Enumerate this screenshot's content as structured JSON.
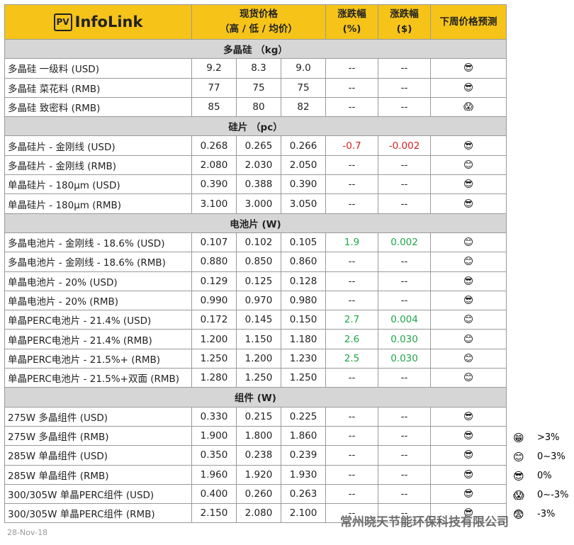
{
  "header": {
    "logo_badge": "PV",
    "logo_text": "InfoLink",
    "columns": [
      [
        "现货价格",
        "（高 / 低 / 均价）"
      ],
      [
        "涨跌幅",
        "(%)"
      ],
      [
        "涨跌幅",
        "($)"
      ],
      [
        "下周价格预测"
      ]
    ]
  },
  "sections": [
    {
      "title": "多晶硅 （kg）",
      "rows": [
        [
          "多晶硅 一级料 (USD)",
          "9.2",
          "8.3",
          "9.0",
          "--",
          "--",
          "😎"
        ],
        [
          "多晶硅 菜花料 (RMB)",
          "77",
          "75",
          "75",
          "--",
          "--",
          "😎"
        ],
        [
          "多晶硅 致密料 (RMB)",
          "85",
          "80",
          "82",
          "--",
          "--",
          "😱"
        ]
      ]
    },
    {
      "title": "硅片 （pc）",
      "rows": [
        [
          "多晶硅片 - 金刚线 (USD)",
          "0.268",
          "0.265",
          "0.266",
          "-0.7",
          "-0.002",
          "😎"
        ],
        [
          "多晶硅片 - 金刚线 (RMB)",
          "2.080",
          "2.030",
          "2.050",
          "--",
          "--",
          "😊"
        ],
        [
          "单晶硅片 - 180μm (USD)",
          "0.390",
          "0.388",
          "0.390",
          "--",
          "--",
          "😎"
        ],
        [
          "单晶硅片 - 180μm (RMB)",
          "3.100",
          "3.000",
          "3.050",
          "--",
          "--",
          "😎"
        ]
      ]
    },
    {
      "title": "电池片 (W)",
      "rows": [
        [
          "多晶电池片 - 金刚线 - 18.6% (USD)",
          "0.107",
          "0.102",
          "0.105",
          "1.9",
          "0.002",
          "😊"
        ],
        [
          "多晶电池片 - 金刚线 - 18.6% (RMB)",
          "0.880",
          "0.850",
          "0.860",
          "--",
          "--",
          "😊"
        ],
        [
          "单晶电池片 - 20% (USD)",
          "0.129",
          "0.125",
          "0.128",
          "--",
          "--",
          "😎"
        ],
        [
          "单晶电池片 - 20% (RMB)",
          "0.990",
          "0.970",
          "0.980",
          "--",
          "--",
          "😎"
        ],
        [
          "单晶PERC电池片 - 21.4% (USD)",
          "0.172",
          "0.145",
          "0.150",
          "2.7",
          "0.004",
          "😊"
        ],
        [
          "单晶PERC电池片 - 21.4% (RMB)",
          "1.200",
          "1.150",
          "1.180",
          "2.6",
          "0.030",
          "😊"
        ],
        [
          "单晶PERC电池片 - 21.5%+ (RMB)",
          "1.250",
          "1.200",
          "1.230",
          "2.5",
          "0.030",
          "😊"
        ],
        [
          "单晶PERC电池片 - 21.5%+双面 (RMB)",
          "1.280",
          "1.250",
          "1.250",
          "--",
          "--",
          "😊"
        ]
      ]
    },
    {
      "title": "组件 (W)",
      "rows": [
        [
          "275W 多晶组件 (USD)",
          "0.330",
          "0.215",
          "0.225",
          "--",
          "--",
          "😎"
        ],
        [
          "275W 多晶组件 (RMB)",
          "1.900",
          "1.800",
          "1.860",
          "--",
          "--",
          "😎"
        ],
        [
          "285W 单晶组件 (USD)",
          "0.350",
          "0.238",
          "0.239",
          "--",
          "--",
          "😎"
        ],
        [
          "285W 单晶组件 (RMB)",
          "1.960",
          "1.920",
          "1.930",
          "--",
          "--",
          "😎"
        ],
        [
          "300/305W 单晶PERC组件 (USD)",
          "0.400",
          "0.260",
          "0.263",
          "--",
          "--",
          "😎"
        ],
        [
          "300/305W 单晶PERC组件 (RMB)",
          "2.150",
          "2.080",
          "2.100",
          "--",
          "--",
          "😎"
        ]
      ]
    }
  ],
  "legend": [
    {
      "icon": "😁",
      "label": ">3%"
    },
    {
      "icon": "😊",
      "label": "0~3%"
    },
    {
      "icon": "😎",
      "label": "0%"
    },
    {
      "icon": "😱",
      "label": "0~-3%"
    },
    {
      "icon": "😨",
      "label": "-3%"
    }
  ],
  "watermark": "常州晓天节能环保科技有限公司",
  "date": "28-Nov-18"
}
